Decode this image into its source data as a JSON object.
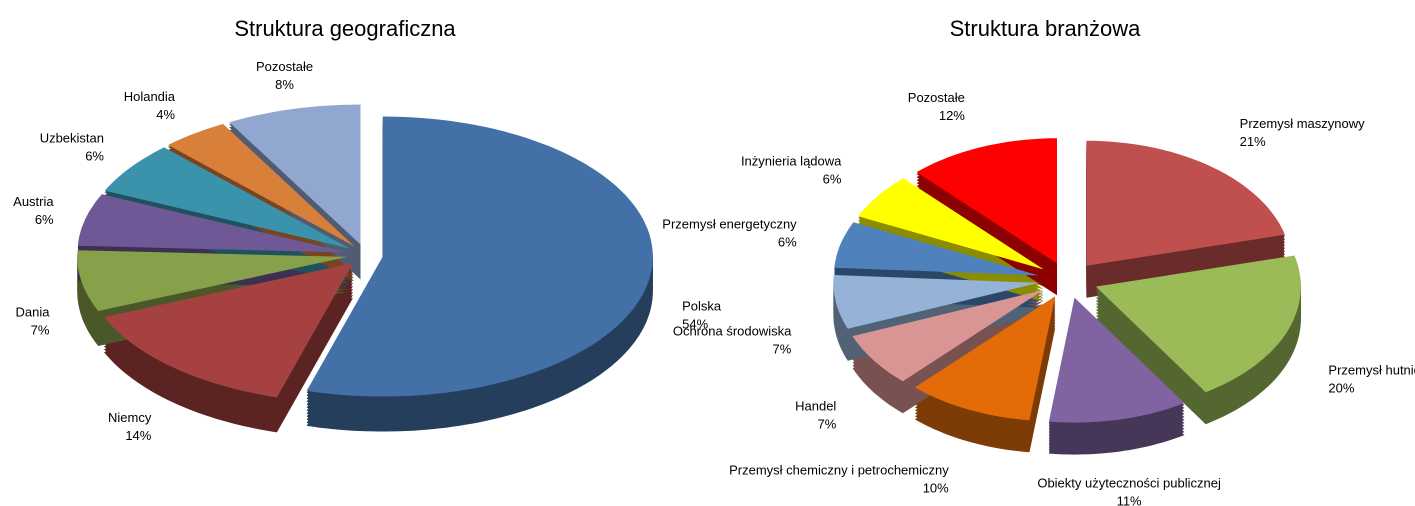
{
  "chart_data": [
    {
      "type": "pie",
      "title": "Struktura geograficzna",
      "categories": [
        "Polska",
        "Niemcy",
        "Dania",
        "Austria",
        "Uzbekistan",
        "Holandia",
        "Pozostałe"
      ],
      "values": [
        54,
        14,
        7,
        6,
        6,
        4,
        8
      ],
      "value_labels": [
        "54%",
        "14%",
        "7%",
        "6%",
        "6%",
        "4%",
        "8%"
      ],
      "colors": [
        "#4470a8",
        "#a54140",
        "#87a04a",
        "#6e5895",
        "#3b93ab",
        "#d8803a",
        "#91a7cf"
      ]
    },
    {
      "type": "pie",
      "title": "Struktura branżowa",
      "categories": [
        "Przemysł maszynowy",
        "Przemysł hutniczy",
        "Obiekty użyteczności publicznej",
        "Przemysł chemiczny i petrochemiczny",
        "Handel",
        "Ochrona środowiska",
        "Przemysł energetyczny",
        "Inżynieria lądowa",
        "Pozostałe"
      ],
      "values": [
        21,
        20,
        11,
        10,
        7,
        7,
        6,
        6,
        12
      ],
      "value_labels": [
        "21%",
        "20%",
        "11%",
        "10%",
        "7%",
        "7%",
        "6%",
        "6%",
        "12%"
      ],
      "colors": [
        "#c0504d",
        "#9bbb59",
        "#8064a2",
        "#e36c09",
        "#d99594",
        "#95b3d7",
        "#4f81bd",
        "#ffff00",
        "#ff0000"
      ]
    }
  ]
}
